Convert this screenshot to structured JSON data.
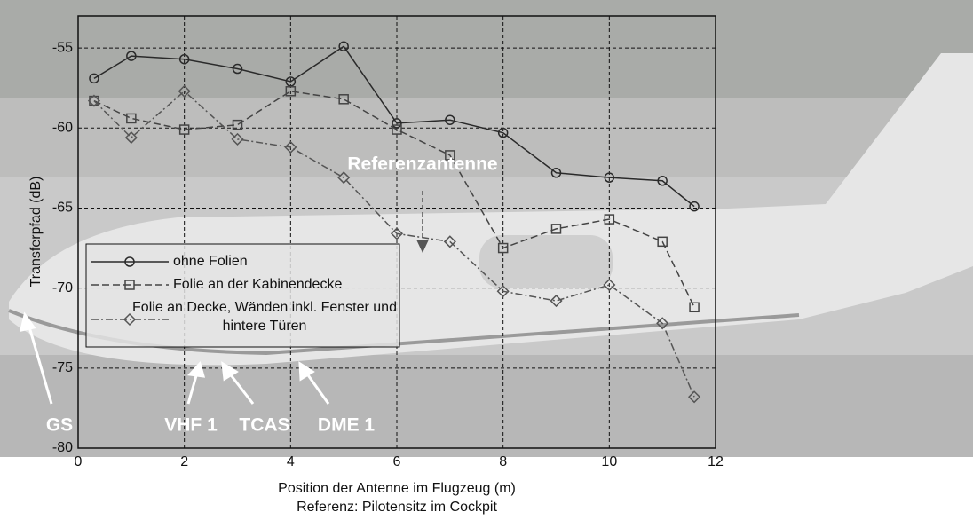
{
  "chart_data": {
    "type": "line",
    "ylabel": "Transferpfad (dB)",
    "xlabel": "Position der Antenne im Flugzeug (m)",
    "xlabel_note": "Referenz: Pilotensitz im Cockpit",
    "x": [
      0.3,
      1,
      2,
      3,
      4,
      5,
      6,
      7,
      8,
      9,
      10,
      11,
      11.6
    ],
    "xlim": [
      0,
      12
    ],
    "xticks": [
      0,
      2,
      4,
      6,
      8,
      10,
      12
    ],
    "ylim": [
      -80,
      -53
    ],
    "yticks": [
      -80,
      -75,
      -70,
      -65,
      -60,
      -55
    ],
    "grid": true,
    "series": [
      {
        "name": "ohne Folien",
        "color": "#2a2a2a",
        "marker": "circle",
        "linestyle": "solid",
        "values": [
          -56.9,
          -55.5,
          -55.7,
          -56.3,
          -57.1,
          -54.9,
          -59.7,
          -59.5,
          -60.3,
          -62.8,
          -63.1,
          -63.3,
          -64.9
        ]
      },
      {
        "name": "Folie an der Kabinendecke",
        "color": "#444444",
        "marker": "square",
        "linestyle": "dashed",
        "values": [
          -58.3,
          -59.4,
          -60.1,
          -59.8,
          -57.7,
          -58.2,
          -60.1,
          -61.7,
          -67.5,
          -66.3,
          -65.7,
          -67.1,
          -71.2
        ]
      },
      {
        "name": "Folie an Decke, Wänden inkl. Fenster und hintere Türen",
        "color": "#555555",
        "marker": "diamond",
        "linestyle": "dashdot",
        "values": [
          -58.3,
          -60.6,
          -57.7,
          -60.7,
          -61.2,
          -63.1,
          -66.6,
          -67.1,
          -70.2,
          -70.8,
          -69.8,
          -72.2,
          -76.8
        ]
      }
    ],
    "annotations": [
      "Referenzantenne",
      "GS",
      "VHF 1",
      "TCAS",
      "DME 1"
    ]
  }
}
